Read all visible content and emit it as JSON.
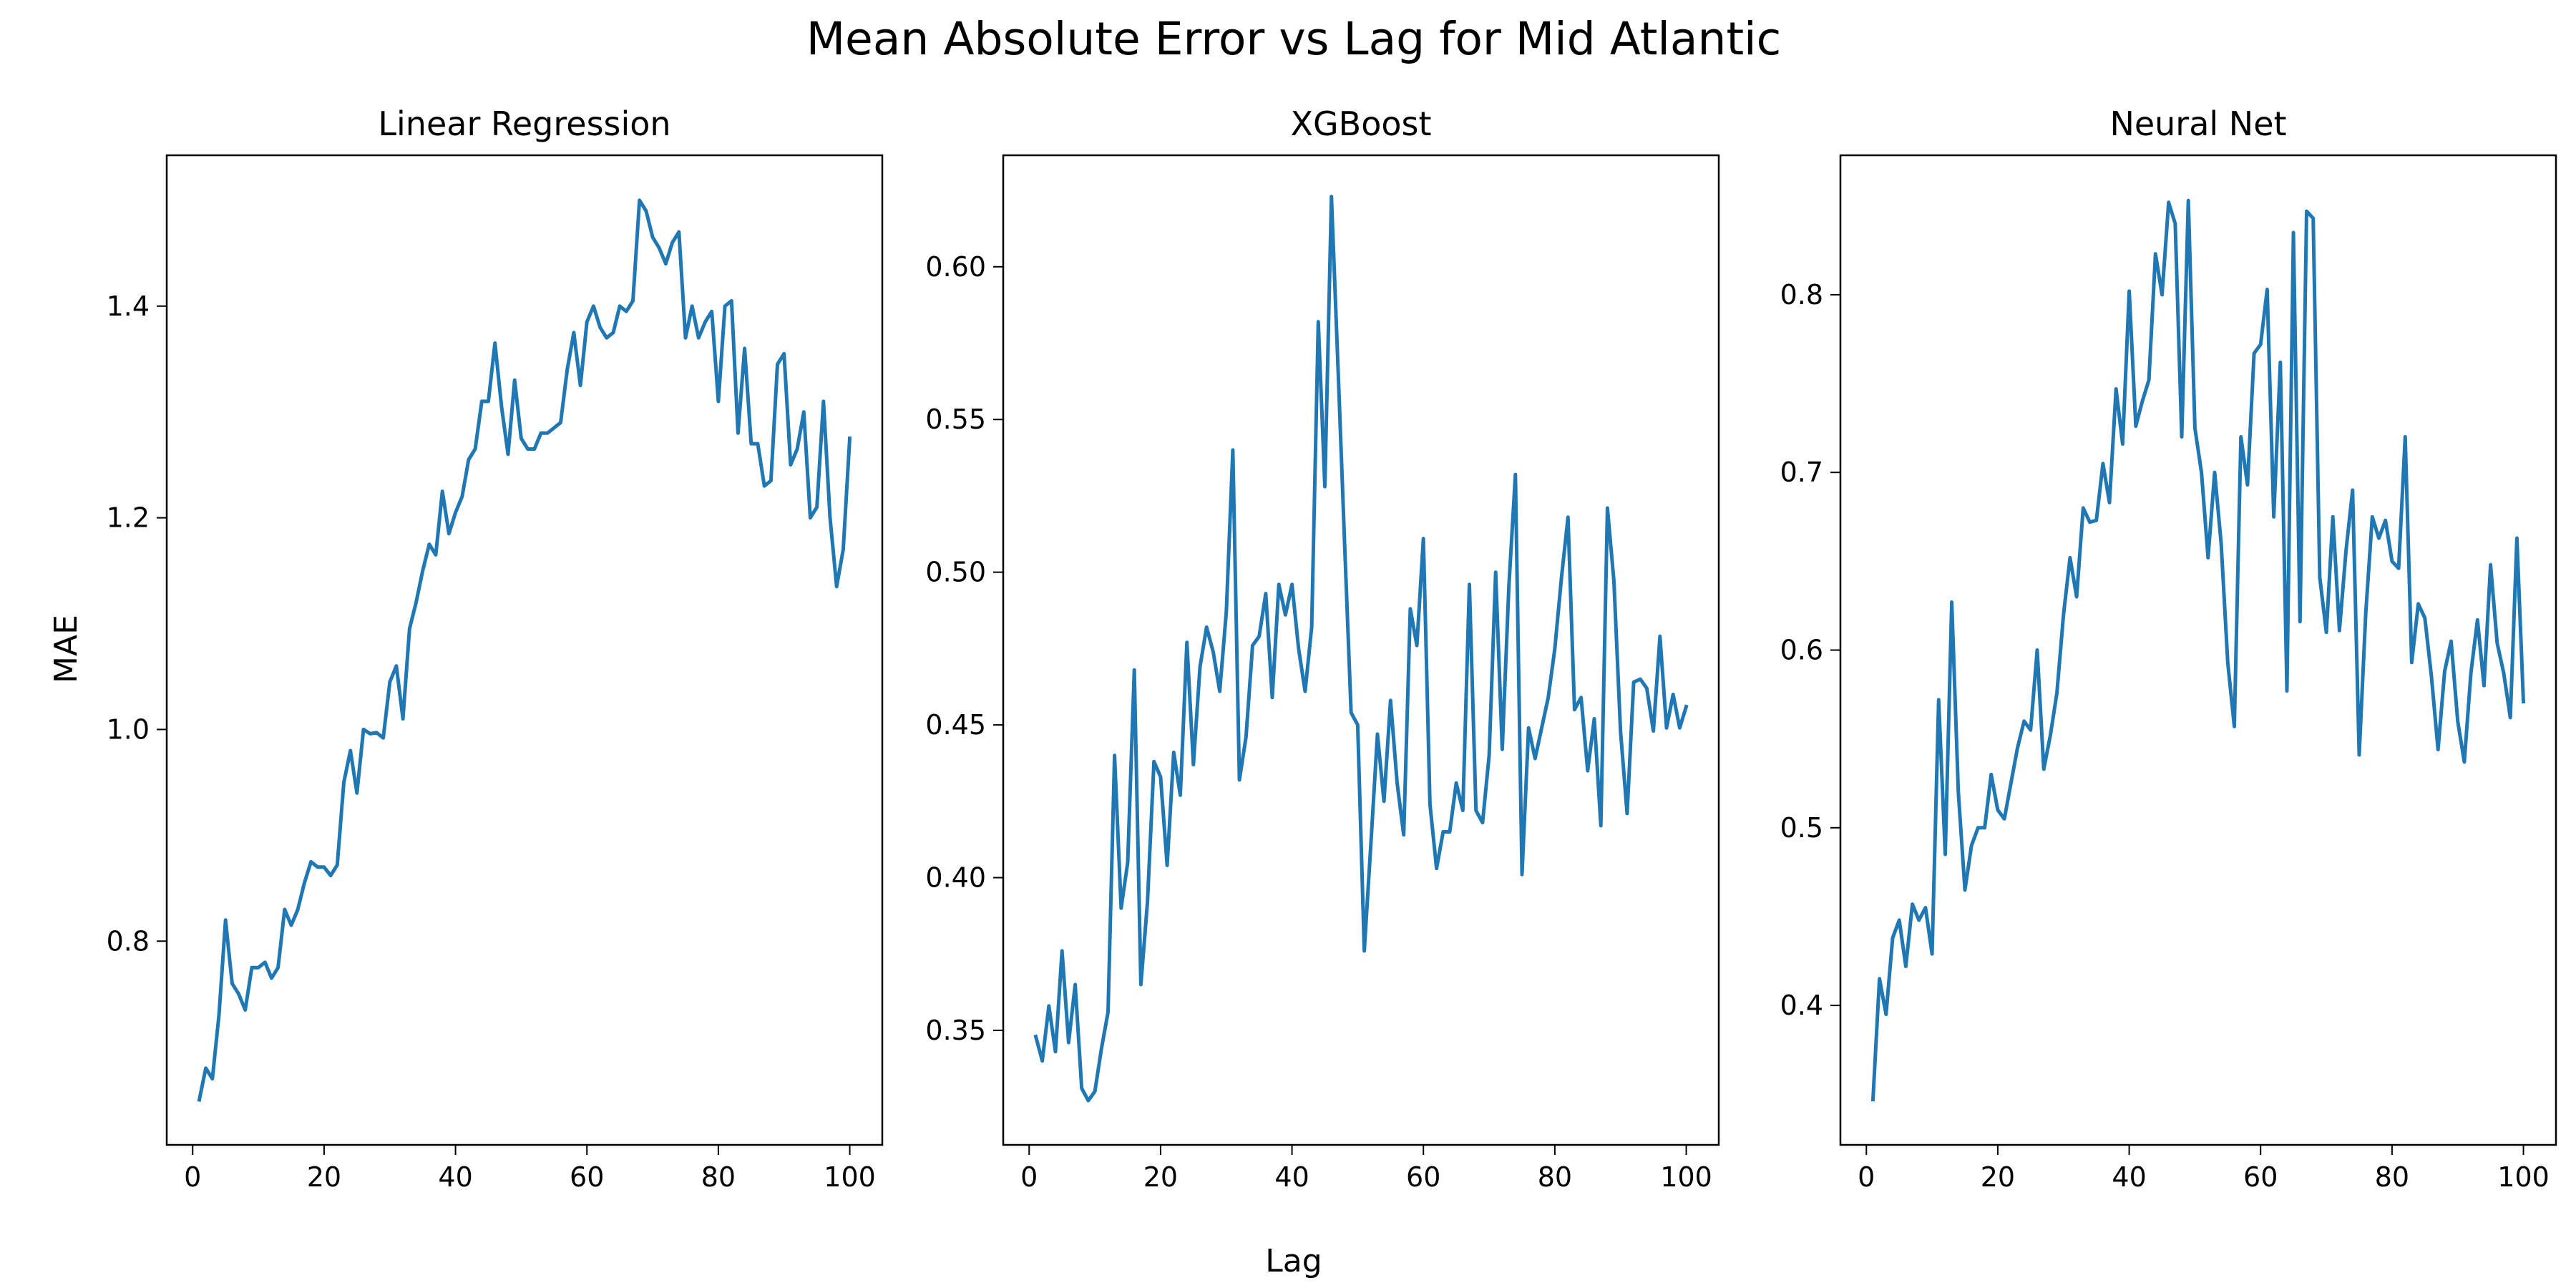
{
  "figure": {
    "title": "Mean Absolute Error vs Lag for Mid Atlantic",
    "xlabel": "Lag",
    "ylabel": "MAE",
    "line_color": "#1f77b4"
  },
  "chart_data": [
    {
      "type": "line",
      "title": "Linear Regression",
      "x": [
        1,
        2,
        3,
        4,
        5,
        6,
        7,
        8,
        9,
        10,
        11,
        12,
        13,
        14,
        15,
        16,
        17,
        18,
        19,
        20,
        21,
        22,
        23,
        24,
        25,
        26,
        27,
        28,
        29,
        30,
        31,
        32,
        33,
        34,
        35,
        36,
        37,
        38,
        39,
        40,
        41,
        42,
        43,
        44,
        45,
        46,
        47,
        48,
        49,
        50,
        51,
        52,
        53,
        54,
        55,
        56,
        57,
        58,
        59,
        60,
        61,
        62,
        63,
        64,
        65,
        66,
        67,
        68,
        69,
        70,
        71,
        72,
        73,
        74,
        75,
        76,
        77,
        78,
        79,
        80,
        81,
        82,
        83,
        84,
        85,
        86,
        87,
        88,
        89,
        90,
        91,
        92,
        93,
        94,
        95,
        96,
        97,
        98,
        99,
        100
      ],
      "values": [
        0.65,
        0.68,
        0.67,
        0.73,
        0.82,
        0.76,
        0.75,
        0.735,
        0.775,
        0.775,
        0.78,
        0.765,
        0.775,
        0.83,
        0.815,
        0.83,
        0.855,
        0.875,
        0.87,
        0.87,
        0.862,
        0.872,
        0.95,
        0.98,
        0.94,
        1.0,
        0.996,
        0.997,
        0.992,
        1.045,
        1.06,
        1.01,
        1.095,
        1.12,
        1.15,
        1.175,
        1.165,
        1.225,
        1.185,
        1.205,
        1.22,
        1.255,
        1.265,
        1.31,
        1.31,
        1.365,
        1.305,
        1.26,
        1.33,
        1.275,
        1.265,
        1.265,
        1.28,
        1.28,
        1.285,
        1.29,
        1.34,
        1.375,
        1.325,
        1.385,
        1.4,
        1.38,
        1.37,
        1.375,
        1.4,
        1.395,
        1.405,
        1.5,
        1.49,
        1.465,
        1.455,
        1.44,
        1.46,
        1.47,
        1.37,
        1.4,
        1.37,
        1.385,
        1.395,
        1.31,
        1.4,
        1.405,
        1.28,
        1.36,
        1.27,
        1.27,
        1.23,
        1.235,
        1.345,
        1.355,
        1.25,
        1.265,
        1.3,
        1.2,
        1.21,
        1.31,
        1.2,
        1.135,
        1.17,
        1.275
      ],
      "xlim": [
        -3.95,
        104.95
      ],
      "ylim": [
        0.6075,
        1.5425
      ],
      "xticks": [
        0,
        20,
        40,
        60,
        80,
        100
      ],
      "yticks": [
        0.8,
        1.0,
        1.2,
        1.4
      ],
      "ytick_labels": [
        "0.8",
        "1.0",
        "1.2",
        "1.4"
      ]
    },
    {
      "type": "line",
      "title": "XGBoost",
      "x": [
        1,
        2,
        3,
        4,
        5,
        6,
        7,
        8,
        9,
        10,
        11,
        12,
        13,
        14,
        15,
        16,
        17,
        18,
        19,
        20,
        21,
        22,
        23,
        24,
        25,
        26,
        27,
        28,
        29,
        30,
        31,
        32,
        33,
        34,
        35,
        36,
        37,
        38,
        39,
        40,
        41,
        42,
        43,
        44,
        45,
        46,
        47,
        48,
        49,
        50,
        51,
        52,
        53,
        54,
        55,
        56,
        57,
        58,
        59,
        60,
        61,
        62,
        63,
        64,
        65,
        66,
        67,
        68,
        69,
        70,
        71,
        72,
        73,
        74,
        75,
        76,
        77,
        78,
        79,
        80,
        81,
        82,
        83,
        84,
        85,
        86,
        87,
        88,
        89,
        90,
        91,
        92,
        93,
        94,
        95,
        96,
        97,
        98,
        99,
        100
      ],
      "values": [
        0.348,
        0.34,
        0.358,
        0.343,
        0.376,
        0.346,
        0.365,
        0.331,
        0.327,
        0.33,
        0.344,
        0.356,
        0.44,
        0.39,
        0.405,
        0.468,
        0.365,
        0.392,
        0.438,
        0.433,
        0.404,
        0.441,
        0.427,
        0.477,
        0.437,
        0.469,
        0.482,
        0.474,
        0.461,
        0.487,
        0.54,
        0.432,
        0.446,
        0.476,
        0.479,
        0.493,
        0.459,
        0.496,
        0.486,
        0.496,
        0.475,
        0.461,
        0.482,
        0.582,
        0.528,
        0.623,
        0.567,
        0.51,
        0.454,
        0.45,
        0.376,
        0.411,
        0.447,
        0.425,
        0.458,
        0.431,
        0.414,
        0.488,
        0.476,
        0.511,
        0.424,
        0.403,
        0.415,
        0.415,
        0.431,
        0.422,
        0.496,
        0.422,
        0.418,
        0.44,
        0.5,
        0.442,
        0.495,
        0.532,
        0.401,
        0.449,
        0.439,
        0.449,
        0.459,
        0.475,
        0.498,
        0.518,
        0.455,
        0.459,
        0.435,
        0.452,
        0.417,
        0.521,
        0.497,
        0.448,
        0.421,
        0.464,
        0.465,
        0.462,
        0.448,
        0.479,
        0.449,
        0.46,
        0.449,
        0.456
      ],
      "xlim": [
        -3.95,
        104.95
      ],
      "ylim": [
        0.3125,
        0.6365
      ],
      "xticks": [
        0,
        20,
        40,
        60,
        80,
        100
      ],
      "yticks": [
        0.35,
        0.4,
        0.45,
        0.5,
        0.55,
        0.6
      ],
      "ytick_labels": [
        "0.35",
        "0.40",
        "0.45",
        "0.50",
        "0.55",
        "0.60"
      ]
    },
    {
      "type": "line",
      "title": "Neural Net",
      "x": [
        1,
        2,
        3,
        4,
        5,
        6,
        7,
        8,
        9,
        10,
        11,
        12,
        13,
        14,
        15,
        16,
        17,
        18,
        19,
        20,
        21,
        22,
        23,
        24,
        25,
        26,
        27,
        28,
        29,
        30,
        31,
        32,
        33,
        34,
        35,
        36,
        37,
        38,
        39,
        40,
        41,
        42,
        43,
        44,
        45,
        46,
        47,
        48,
        49,
        50,
        51,
        52,
        53,
        54,
        55,
        56,
        57,
        58,
        59,
        60,
        61,
        62,
        63,
        64,
        65,
        66,
        67,
        68,
        69,
        70,
        71,
        72,
        73,
        74,
        75,
        76,
        77,
        78,
        79,
        80,
        81,
        82,
        83,
        84,
        85,
        86,
        87,
        88,
        89,
        90,
        91,
        92,
        93,
        94,
        95,
        96,
        97,
        98,
        99,
        100
      ],
      "values": [
        0.347,
        0.415,
        0.395,
        0.438,
        0.448,
        0.422,
        0.457,
        0.448,
        0.455,
        0.429,
        0.572,
        0.485,
        0.627,
        0.52,
        0.465,
        0.49,
        0.5,
        0.5,
        0.53,
        0.51,
        0.505,
        0.525,
        0.545,
        0.56,
        0.555,
        0.6,
        0.533,
        0.552,
        0.576,
        0.62,
        0.652,
        0.63,
        0.68,
        0.672,
        0.673,
        0.705,
        0.683,
        0.747,
        0.716,
        0.802,
        0.726,
        0.74,
        0.752,
        0.823,
        0.8,
        0.852,
        0.84,
        0.72,
        0.853,
        0.725,
        0.7,
        0.652,
        0.7,
        0.66,
        0.593,
        0.557,
        0.72,
        0.693,
        0.767,
        0.772,
        0.803,
        0.675,
        0.762,
        0.577,
        0.835,
        0.616,
        0.847,
        0.843,
        0.641,
        0.61,
        0.675,
        0.611,
        0.656,
        0.69,
        0.541,
        0.621,
        0.675,
        0.663,
        0.673,
        0.65,
        0.646,
        0.72,
        0.593,
        0.626,
        0.618,
        0.585,
        0.544,
        0.588,
        0.605,
        0.56,
        0.537,
        0.587,
        0.617,
        0.58,
        0.648,
        0.604,
        0.587,
        0.562,
        0.663,
        0.571
      ],
      "xlim": [
        -3.95,
        104.95
      ],
      "ylim": [
        0.3215,
        0.8785
      ],
      "xticks": [
        0,
        20,
        40,
        60,
        80,
        100
      ],
      "yticks": [
        0.4,
        0.5,
        0.6,
        0.7,
        0.8
      ],
      "ytick_labels": [
        "0.4",
        "0.5",
        "0.6",
        "0.7",
        "0.8"
      ]
    }
  ]
}
